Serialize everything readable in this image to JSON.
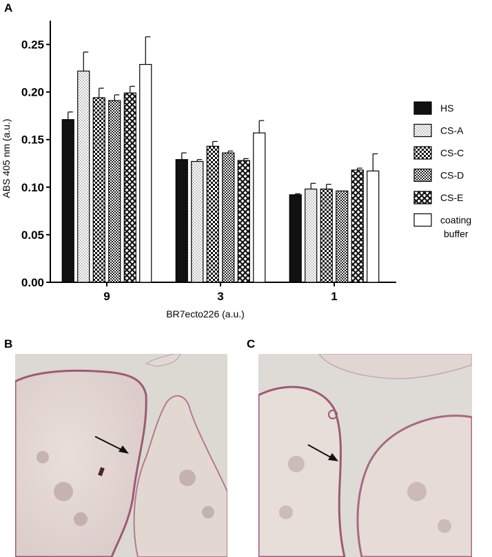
{
  "panels": {
    "a_label": "A",
    "b_label": "B",
    "c_label": "C"
  },
  "chart_data": {
    "type": "bar",
    "title": "",
    "xlabel": "BR7ecto226 (a.u.)",
    "ylabel": "ABS 405 nm (a.u.)",
    "ylim": [
      0,
      0.275
    ],
    "yticks": [
      "0.00",
      "0.05",
      "0.10",
      "0.15",
      "0.20",
      "0.25"
    ],
    "categories": [
      "9",
      "3",
      "1"
    ],
    "grid": false,
    "legend_position": "right",
    "series": [
      {
        "name": "HS",
        "pattern": "solid-black",
        "values": [
          0.171,
          0.129,
          0.092
        ],
        "errors": [
          0.008,
          0.007,
          0.001
        ]
      },
      {
        "name": "CS-A",
        "pattern": "fine-dots",
        "values": [
          0.222,
          0.127,
          0.098
        ],
        "errors": [
          0.02,
          0.002,
          0.006
        ]
      },
      {
        "name": "CS-C",
        "pattern": "checker",
        "values": [
          0.194,
          0.143,
          0.098
        ],
        "errors": [
          0.01,
          0.005,
          0.005
        ]
      },
      {
        "name": "CS-D",
        "pattern": "dense-checker",
        "values": [
          0.191,
          0.136,
          0.096
        ],
        "errors": [
          0.006,
          0.002,
          0.0
        ]
      },
      {
        "name": "CS-E",
        "pattern": "crosshatch",
        "values": [
          0.199,
          0.128,
          0.118
        ],
        "errors": [
          0.007,
          0.002,
          0.002
        ]
      },
      {
        "name": "coating buffer",
        "pattern": "white",
        "values": [
          0.229,
          0.157,
          0.117
        ],
        "errors": [
          0.029,
          0.013,
          0.018
        ]
      }
    ]
  },
  "colors": {
    "hs_fill": "#111111",
    "tissue": "#e6dcd8",
    "tissue_edge": "#9c5a74",
    "background_slide": "#dedbd6"
  }
}
